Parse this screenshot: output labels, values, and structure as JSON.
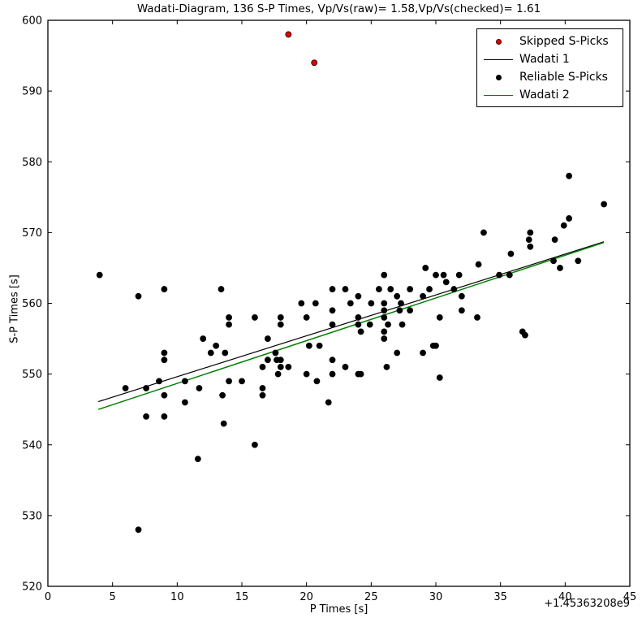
{
  "chart_data": {
    "type": "scatter",
    "title": "Wadati-Diagram, 136 S-P Times, Vp/Vs(raw)= 1.58,Vp/Vs(checked)= 1.61",
    "xlabel": "P Times [s]",
    "ylabel": "S-P Times [s]",
    "x_offset_label": "+1.45363208e9",
    "xlim": [
      0,
      45
    ],
    "ylim": [
      520,
      600
    ],
    "xticks": [
      0,
      5,
      10,
      15,
      20,
      25,
      30,
      35,
      40,
      45
    ],
    "yticks": [
      520,
      530,
      540,
      550,
      560,
      570,
      580,
      590,
      600
    ],
    "grid": false,
    "legend": {
      "position": "upper right",
      "entries": [
        {
          "label": "Skipped S-Picks",
          "marker": "dot",
          "color": "#e50000"
        },
        {
          "label": "Wadati 1",
          "marker": "line",
          "color": "#000000"
        },
        {
          "label": "Reliable S-Picks",
          "marker": "dot",
          "color": "#000000"
        },
        {
          "label": "Wadati 2",
          "marker": "line",
          "color": "#008000"
        }
      ]
    },
    "series": [
      {
        "name": "Wadati 1",
        "kind": "line",
        "color": "#000000",
        "slope": 0.58,
        "points": [
          [
            3.9,
            546.1
          ],
          [
            43.0,
            568.7
          ]
        ]
      },
      {
        "name": "Wadati 2",
        "kind": "line",
        "color": "#008000",
        "slope": 0.61,
        "points": [
          [
            3.9,
            545.0
          ],
          [
            43.0,
            568.6
          ]
        ]
      },
      {
        "name": "Reliable S-Picks",
        "kind": "scatter",
        "color": "#000000",
        "points": [
          [
            4,
            564
          ],
          [
            6,
            548
          ],
          [
            7,
            561
          ],
          [
            7,
            528
          ],
          [
            7.6,
            548
          ],
          [
            7.6,
            544
          ],
          [
            8.6,
            549
          ],
          [
            9,
            562
          ],
          [
            9,
            553
          ],
          [
            9,
            552
          ],
          [
            9,
            547
          ],
          [
            9,
            544
          ],
          [
            10.6,
            549
          ],
          [
            10.6,
            546
          ],
          [
            11.6,
            538
          ],
          [
            11.7,
            548
          ],
          [
            12,
            555
          ],
          [
            12.6,
            553
          ],
          [
            13,
            554
          ],
          [
            13.4,
            562
          ],
          [
            13.5,
            547
          ],
          [
            13.6,
            543
          ],
          [
            13.7,
            553
          ],
          [
            14,
            558
          ],
          [
            14,
            557
          ],
          [
            14,
            549
          ],
          [
            15,
            549
          ],
          [
            16,
            558
          ],
          [
            16,
            540
          ],
          [
            16.6,
            551
          ],
          [
            16.6,
            548
          ],
          [
            16.6,
            547
          ],
          [
            17,
            555
          ],
          [
            17,
            552
          ],
          [
            17.6,
            553
          ],
          [
            17.7,
            552
          ],
          [
            17.8,
            550
          ],
          [
            18,
            558
          ],
          [
            18,
            557
          ],
          [
            18,
            552
          ],
          [
            18,
            551
          ],
          [
            18.6,
            551
          ],
          [
            19.6,
            560
          ],
          [
            20,
            558
          ],
          [
            20,
            550
          ],
          [
            20.2,
            554
          ],
          [
            20.7,
            560
          ],
          [
            20.8,
            549
          ],
          [
            21,
            554
          ],
          [
            21.7,
            546
          ],
          [
            22,
            562
          ],
          [
            22,
            559
          ],
          [
            22,
            557
          ],
          [
            22,
            552
          ],
          [
            22,
            550
          ],
          [
            23,
            562
          ],
          [
            23,
            551
          ],
          [
            23.4,
            560
          ],
          [
            24,
            561
          ],
          [
            24,
            558
          ],
          [
            24,
            557
          ],
          [
            24,
            550
          ],
          [
            24.2,
            556
          ],
          [
            24.2,
            550
          ],
          [
            24.9,
            557
          ],
          [
            25,
            560
          ],
          [
            25.6,
            562
          ],
          [
            26,
            564
          ],
          [
            26,
            560
          ],
          [
            26,
            559
          ],
          [
            26,
            558
          ],
          [
            26,
            556
          ],
          [
            26,
            555
          ],
          [
            26.2,
            551
          ],
          [
            26.3,
            557
          ],
          [
            26.5,
            562
          ],
          [
            27,
            561
          ],
          [
            27,
            553
          ],
          [
            27.2,
            559
          ],
          [
            27.3,
            560
          ],
          [
            27.4,
            557
          ],
          [
            28,
            562
          ],
          [
            28,
            559
          ],
          [
            29,
            561
          ],
          [
            29,
            553
          ],
          [
            29.2,
            565
          ],
          [
            29.5,
            562
          ],
          [
            29.8,
            554
          ],
          [
            30,
            564
          ],
          [
            30,
            554
          ],
          [
            30.3,
            558
          ],
          [
            30.3,
            549.5
          ],
          [
            30.6,
            564
          ],
          [
            30.8,
            563
          ],
          [
            31.4,
            562
          ],
          [
            31.8,
            564
          ],
          [
            32,
            561
          ],
          [
            32,
            559
          ],
          [
            33.2,
            558
          ],
          [
            33.3,
            565.5
          ],
          [
            33.7,
            570
          ],
          [
            34.9,
            564
          ],
          [
            35.7,
            564
          ],
          [
            35.8,
            567
          ],
          [
            36.7,
            556
          ],
          [
            36.9,
            555.5
          ],
          [
            37.2,
            569
          ],
          [
            37.3,
            570
          ],
          [
            37.3,
            568
          ],
          [
            39.1,
            566
          ],
          [
            39.2,
            569
          ],
          [
            39.6,
            565
          ],
          [
            39.9,
            571
          ],
          [
            40.3,
            578
          ],
          [
            40.3,
            572
          ],
          [
            41,
            566
          ],
          [
            43,
            574
          ]
        ]
      },
      {
        "name": "Skipped S-Picks",
        "kind": "scatter",
        "color": "#e50000",
        "points": [
          [
            18.6,
            598
          ],
          [
            20.6,
            594
          ]
        ]
      }
    ]
  }
}
